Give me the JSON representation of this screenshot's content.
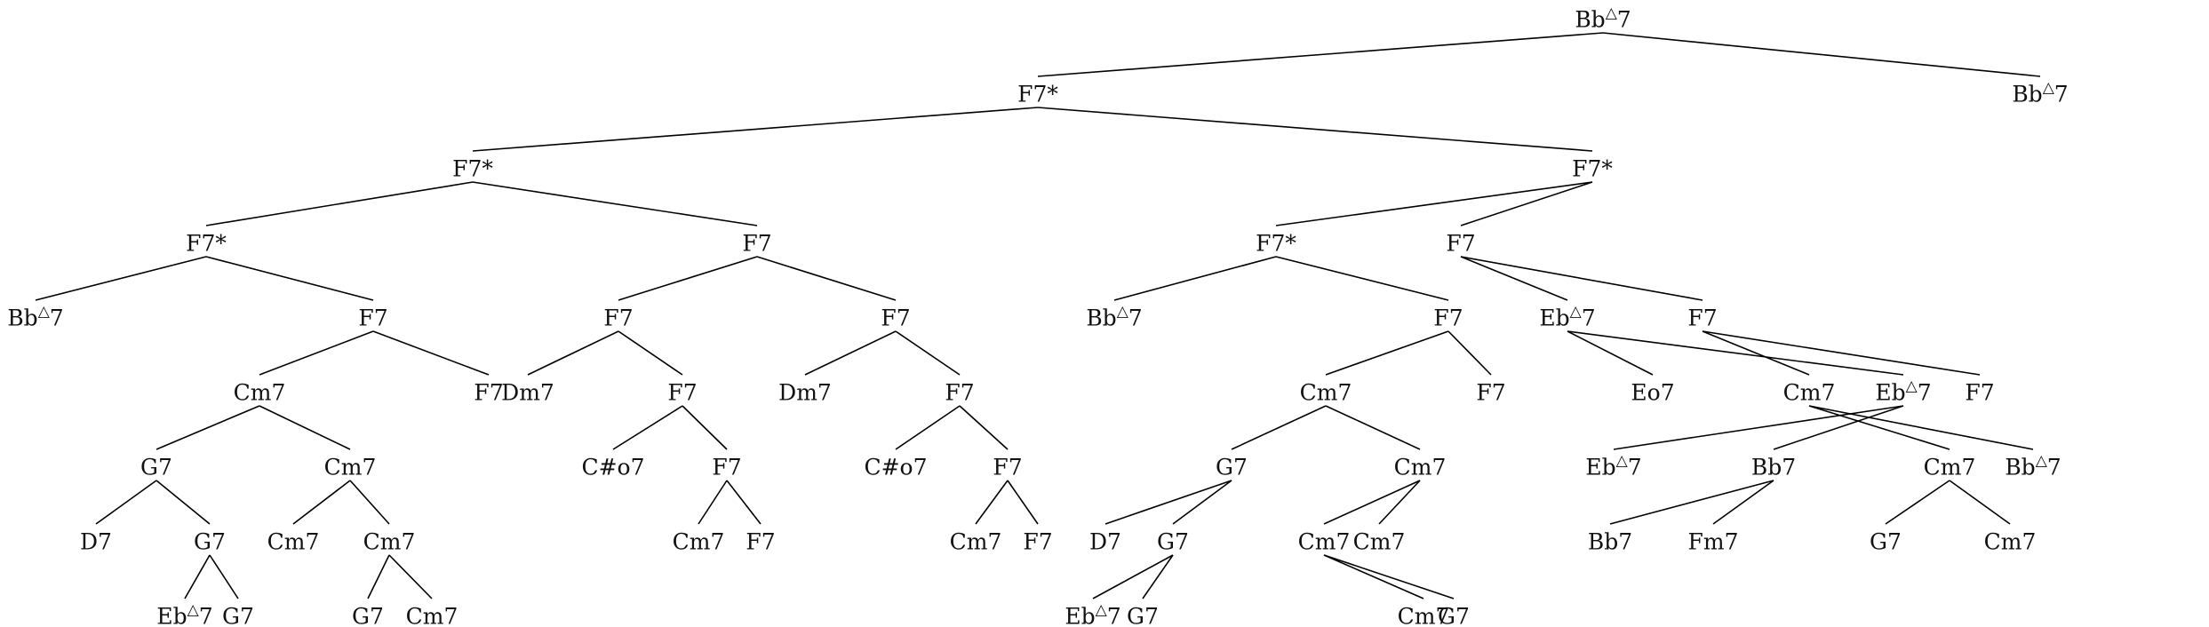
{
  "tree": {
    "label": "Bb△7",
    "children": [
      {
        "label": "F7*",
        "children": [
          {
            "label": "F7*",
            "children": [
              {
                "label": "F7*",
                "children": [
                  {
                    "label": "Bb△7"
                  },
                  {
                    "label": "F7",
                    "children": [
                      {
                        "label": "Cm7",
                        "children": [
                          {
                            "label": "G7",
                            "children": [
                              {
                                "label": "D7"
                              },
                              {
                                "label": "G7",
                                "children": [
                                  {
                                    "label": "Eb△7"
                                  },
                                  {
                                    "label": "G7"
                                  }
                                ]
                              }
                            ]
                          },
                          {
                            "label": "Cm7",
                            "children": [
                              {
                                "label": "Cm7"
                              },
                              {
                                "label": "Cm7",
                                "children": [
                                  {
                                    "label": "G7"
                                  },
                                  {
                                    "label": "Cm7"
                                  }
                                ]
                              }
                            ]
                          }
                        ]
                      },
                      {
                        "label": "F7"
                      }
                    ]
                  }
                ]
              },
              {
                "label": "F7",
                "children": [
                  {
                    "label": "F7",
                    "children": [
                      {
                        "label": "Dm7"
                      },
                      {
                        "label": "F7",
                        "children": [
                          {
                            "label": "C#o7"
                          },
                          {
                            "label": "F7",
                            "children": [
                              {
                                "label": "Cm7"
                              },
                              {
                                "label": "F7"
                              }
                            ]
                          }
                        ]
                      }
                    ]
                  },
                  {
                    "label": "F7",
                    "children": [
                      {
                        "label": "Dm7"
                      },
                      {
                        "label": "F7",
                        "children": [
                          {
                            "label": "C#o7"
                          },
                          {
                            "label": "F7",
                            "children": [
                              {
                                "label": "Cm7"
                              },
                              {
                                "label": "F7"
                              }
                            ]
                          }
                        ]
                      }
                    ]
                  }
                ]
              }
            ]
          },
          {
            "label": "F7*",
            "children": [
              {
                "label": "F7*",
                "children": [
                  {
                    "label": "Bb△7"
                  },
                  {
                    "label": "F7",
                    "children": [
                      {
                        "label": "Cm7",
                        "children": [
                          {
                            "label": "G7",
                            "children": [
                              {
                                "label": "D7"
                              },
                              {
                                "label": "G7",
                                "children": [
                                  {
                                    "label": "Eb△7"
                                  },
                                  {
                                    "label": "G7"
                                  }
                                ]
                              }
                            ]
                          },
                          {
                            "label": "Cm7",
                            "children": [
                              {
                                "label": "Cm7"
                              },
                              {
                                "label": "Cm7",
                                "children": [
                                  {
                                    "label": "G7"
                                  },
                                  {
                                    "label": "Cm7"
                                  }
                                ]
                              }
                            ]
                          }
                        ]
                      },
                      {
                        "label": "F7"
                      }
                    ]
                  }
                ]
              },
              {
                "label": "F7",
                "children": [
                  {
                    "label": "Eb△7",
                    "children": [
                      {
                        "label": "Eb△7",
                        "children": [
                          {
                            "label": "Bb7",
                            "children": [
                              {
                                "label": "Fm7"
                              },
                              {
                                "label": "Bb7"
                              }
                            ]
                          },
                          {
                            "label": "Eb△7"
                          }
                        ]
                      },
                      {
                        "label": "Eo7"
                      }
                    ]
                  },
                  {
                    "label": "F7",
                    "children": [
                      {
                        "label": "Cm7",
                        "children": [
                          {
                            "label": "Bb△7"
                          },
                          {
                            "label": "Cm7",
                            "children": [
                              {
                                "label": "G7"
                              },
                              {
                                "label": "Cm7"
                              }
                            ]
                          }
                        ]
                      },
                      {
                        "label": "F7"
                      }
                    ]
                  }
                ]
              }
            ]
          }
        ]
      },
      {
        "label": "Bb△7"
      }
    ]
  }
}
